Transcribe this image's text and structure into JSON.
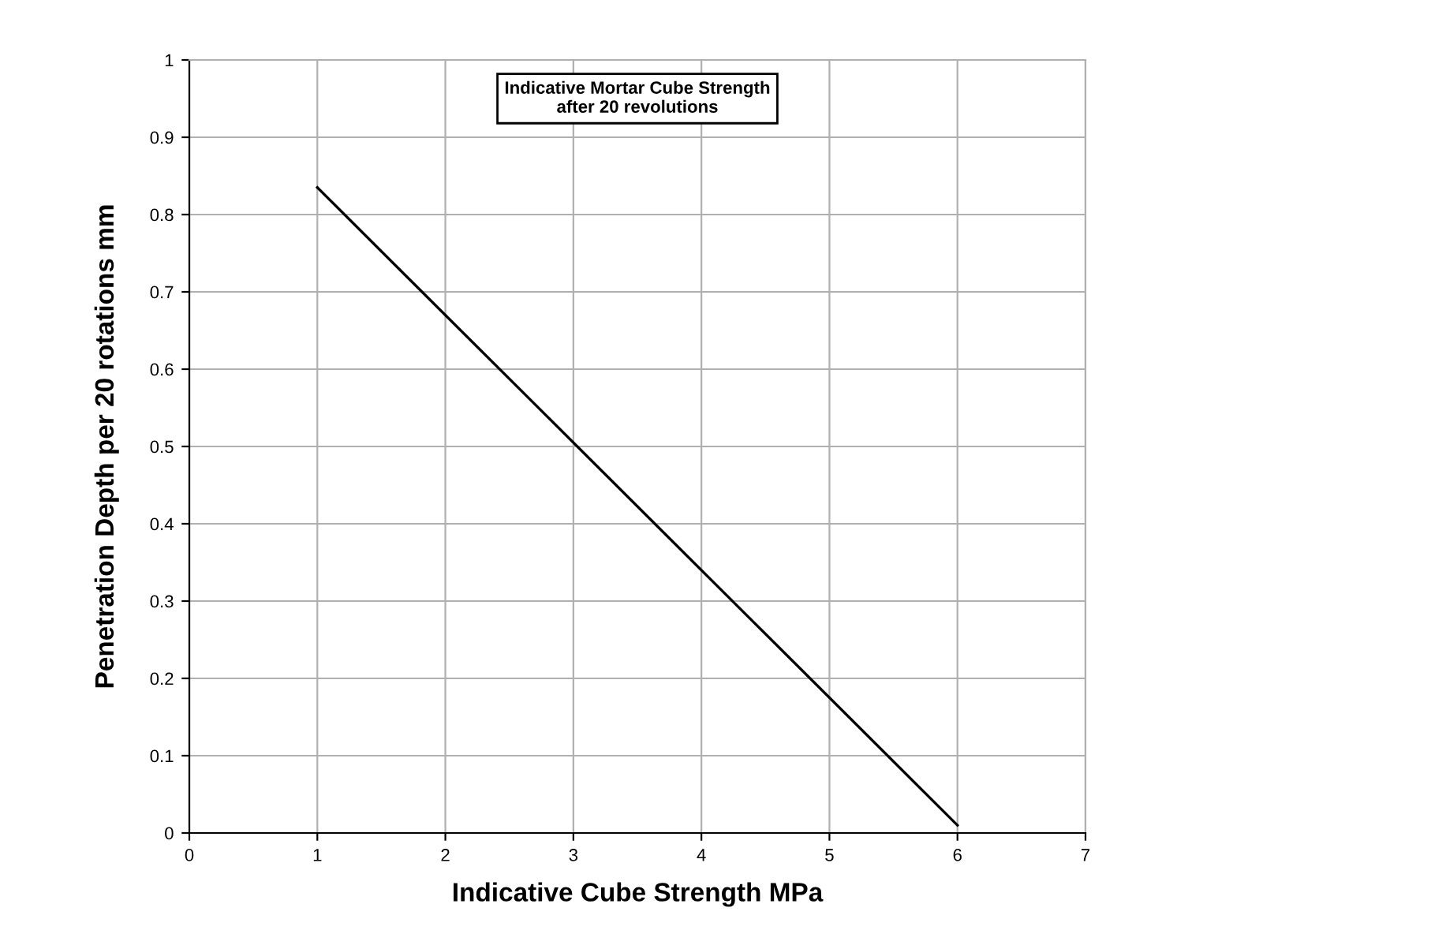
{
  "chart_data": {
    "type": "line",
    "title": "Indicative Mortar Cube Strength\nafter 20 revolutions",
    "xlabel": "Indicative Cube Strength MPa",
    "ylabel": "Penetration Depth per 20 rotations mm",
    "x": [
      1,
      6
    ],
    "series": [
      {
        "color": "#000000",
        "values": [
          0.835,
          0.01
        ]
      }
    ],
    "xlim": [
      0,
      7
    ],
    "ylim": [
      0,
      1
    ],
    "xticks": [
      0,
      1,
      2,
      3,
      4,
      5,
      6,
      7
    ],
    "yticks": [
      0,
      0.1,
      0.2,
      0.3,
      0.4,
      0.5,
      0.6,
      0.7,
      0.8,
      0.9,
      1
    ],
    "grid": true,
    "legend": false,
    "marker": "none",
    "line_style": "solid"
  }
}
